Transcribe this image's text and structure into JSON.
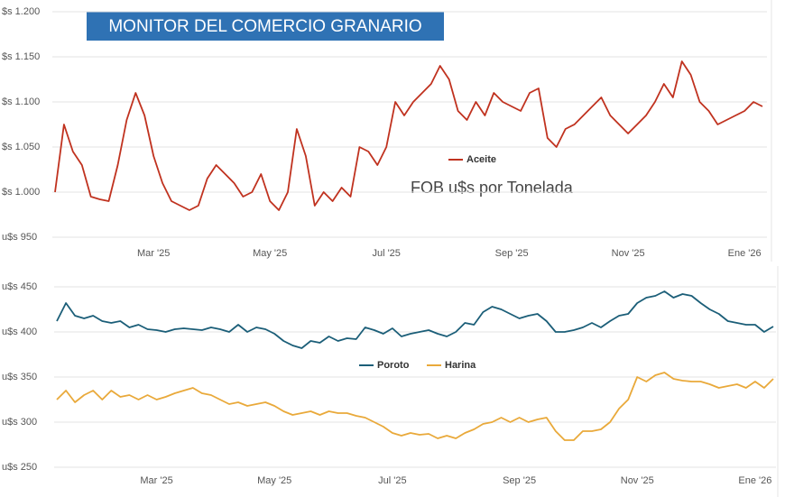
{
  "chart_data": [
    {
      "type": "line",
      "title": "MONITOR DEL COMERCIO GRANARIO",
      "subtitle": "FOB u$s por Tonelada",
      "categories": [
        null,
        null,
        null,
        null,
        null,
        null,
        null,
        null,
        null,
        null,
        null,
        "Mar '25",
        null,
        null,
        null,
        null,
        null,
        null,
        null,
        null,
        null,
        null,
        null,
        null,
        "May '25",
        null,
        null,
        null,
        null,
        null,
        null,
        null,
        null,
        null,
        null,
        null,
        null,
        "Jul '25",
        null,
        null,
        null,
        null,
        null,
        null,
        null,
        null,
        null,
        null,
        null,
        null,
        null,
        "Sep '25",
        null,
        null,
        null,
        null,
        null,
        null,
        null,
        null,
        null,
        null,
        null,
        null,
        "Nov '25",
        null,
        null,
        null,
        null,
        null,
        null,
        null,
        null,
        null,
        null,
        null,
        null,
        "Ene '26",
        null,
        null
      ],
      "series": [
        {
          "name": "Aceite",
          "color": "#c0321f",
          "values": [
            1000,
            1075,
            1045,
            1030,
            995,
            992,
            990,
            1030,
            1080,
            1110,
            1085,
            1040,
            1010,
            990,
            985,
            980,
            985,
            1015,
            1030,
            1020,
            1010,
            995,
            1000,
            1020,
            990,
            980,
            1000,
            1070,
            1040,
            985,
            1000,
            990,
            1005,
            995,
            1050,
            1045,
            1030,
            1050,
            1100,
            1085,
            1100,
            1110,
            1120,
            1140,
            1125,
            1090,
            1080,
            1100,
            1085,
            1110,
            1100,
            1095,
            1090,
            1110,
            1115,
            1060,
            1050,
            1070,
            1075,
            1085,
            1095,
            1105,
            1085,
            1075,
            1065,
            1075,
            1085,
            1100,
            1120,
            1105,
            1145,
            1130,
            1100,
            1090,
            1075,
            1080,
            1085,
            1090,
            1100,
            1095
          ]
        }
      ],
      "ylim": [
        950,
        1200
      ],
      "yticks": [
        {
          "value": 950,
          "label": "u$s 950"
        },
        {
          "value": 1000,
          "label": "$s 1.000"
        },
        {
          "value": 1050,
          "label": "$s 1.050"
        },
        {
          "value": 1100,
          "label": "$s 1.100"
        },
        {
          "value": 1150,
          "label": "$s 1.150"
        },
        {
          "value": 1200,
          "label": "$s 1.200"
        }
      ],
      "grid": true
    },
    {
      "type": "line",
      "categories": [
        null,
        null,
        null,
        null,
        null,
        null,
        null,
        null,
        null,
        null,
        null,
        "Mar '25",
        null,
        null,
        null,
        null,
        null,
        null,
        null,
        null,
        null,
        null,
        null,
        null,
        "May '25",
        null,
        null,
        null,
        null,
        null,
        null,
        null,
        null,
        null,
        null,
        null,
        null,
        "Jul '25",
        null,
        null,
        null,
        null,
        null,
        null,
        null,
        null,
        null,
        null,
        null,
        null,
        null,
        "Sep '25",
        null,
        null,
        null,
        null,
        null,
        null,
        null,
        null,
        null,
        null,
        null,
        null,
        "Nov '25",
        null,
        null,
        null,
        null,
        null,
        null,
        null,
        null,
        null,
        null,
        null,
        null,
        "Ene '26",
        null,
        null
      ],
      "series": [
        {
          "name": "Poroto",
          "color": "#1b5e78",
          "values": [
            412,
            432,
            418,
            415,
            418,
            412,
            410,
            412,
            405,
            408,
            403,
            402,
            400,
            403,
            404,
            403,
            402,
            405,
            403,
            400,
            408,
            400,
            405,
            403,
            398,
            390,
            385,
            382,
            390,
            388,
            395,
            390,
            393,
            392,
            405,
            402,
            398,
            404,
            395,
            398,
            400,
            402,
            398,
            395,
            400,
            410,
            408,
            422,
            428,
            425,
            420,
            415,
            418,
            420,
            412,
            400,
            400,
            402,
            405,
            410,
            405,
            412,
            418,
            420,
            432,
            438,
            440,
            445,
            438,
            442,
            440,
            432,
            425,
            420,
            412,
            410,
            408,
            408,
            400,
            406
          ]
        },
        {
          "name": "Harina",
          "color": "#e9a93a",
          "values": [
            325,
            335,
            322,
            330,
            335,
            325,
            335,
            328,
            330,
            325,
            330,
            325,
            328,
            332,
            335,
            338,
            332,
            330,
            325,
            320,
            322,
            318,
            320,
            322,
            318,
            312,
            308,
            310,
            312,
            308,
            312,
            310,
            310,
            307,
            305,
            300,
            295,
            288,
            285,
            288,
            286,
            287,
            282,
            285,
            282,
            288,
            292,
            298,
            300,
            305,
            300,
            305,
            300,
            303,
            305,
            290,
            280,
            280,
            290,
            290,
            292,
            300,
            315,
            325,
            350,
            345,
            352,
            355,
            348,
            346,
            345,
            345,
            342,
            338,
            340,
            342,
            338,
            345,
            338,
            348
          ]
        }
      ],
      "ylim": [
        250,
        450
      ],
      "yticks": [
        {
          "value": 250,
          "label": "u$s 250"
        },
        {
          "value": 300,
          "label": "u$s 300"
        },
        {
          "value": 350,
          "label": "u$s 350"
        },
        {
          "value": 400,
          "label": "u$s 400"
        },
        {
          "value": 450,
          "label": "u$s 450"
        }
      ],
      "grid": true
    }
  ]
}
